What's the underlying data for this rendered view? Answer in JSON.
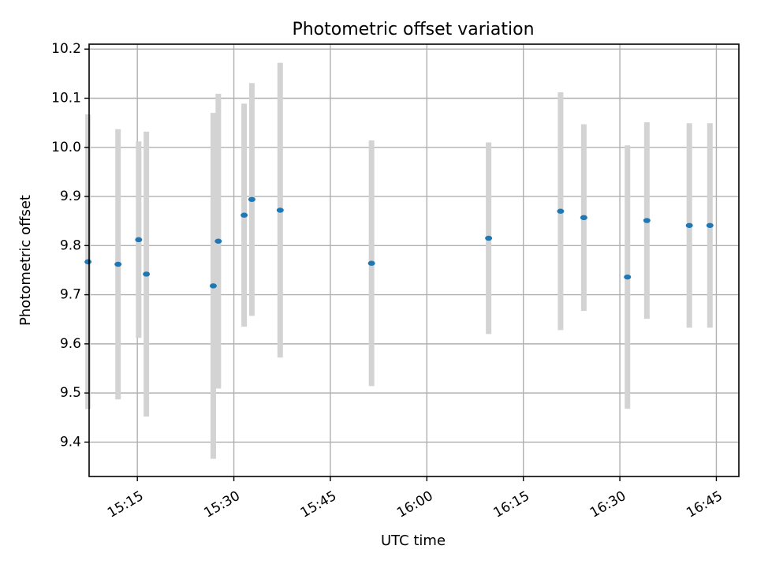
{
  "chart_data": {
    "type": "scatter",
    "title": "Photometric offset variation",
    "xlabel": "UTC time",
    "ylabel": "Photometric offset",
    "x_axis": {
      "type": "time",
      "range": [
        "15:07:30",
        "16:48:30"
      ],
      "ticks": [
        "15:15",
        "15:30",
        "15:45",
        "16:00",
        "16:15",
        "16:30",
        "16:45"
      ]
    },
    "y_axis": {
      "range": [
        9.33,
        10.21
      ],
      "ticks": [
        "9.4",
        "9.5",
        "9.6",
        "9.7",
        "9.8",
        "9.9",
        "10.0",
        "10.1",
        "10.2"
      ]
    },
    "grid": true,
    "colors": {
      "point": "#1f77b4",
      "errorbar": "#d3d3d3"
    },
    "points": [
      {
        "x": "15:07:20",
        "y": 9.767,
        "yerr": 0.3
      },
      {
        "x": "15:12:00",
        "y": 9.762,
        "yerr": 0.275
      },
      {
        "x": "15:15:12",
        "y": 9.812,
        "yerr": 0.2
      },
      {
        "x": "15:16:24",
        "y": 9.742,
        "yerr": 0.29
      },
      {
        "x": "15:26:48",
        "y": 9.718,
        "yerr": 0.352
      },
      {
        "x": "15:27:35",
        "y": 9.809,
        "yerr": 0.3
      },
      {
        "x": "15:31:36",
        "y": 9.862,
        "yerr": 0.227
      },
      {
        "x": "15:32:48",
        "y": 9.894,
        "yerr": 0.237
      },
      {
        "x": "15:37:12",
        "y": 9.872,
        "yerr": 0.3
      },
      {
        "x": "15:51:24",
        "y": 9.764,
        "yerr": 0.25
      },
      {
        "x": "16:09:36",
        "y": 9.815,
        "yerr": 0.195
      },
      {
        "x": "16:20:47",
        "y": 9.87,
        "yerr": 0.242
      },
      {
        "x": "16:24:24",
        "y": 9.857,
        "yerr": 0.19
      },
      {
        "x": "16:31:11",
        "y": 9.736,
        "yerr": 0.268
      },
      {
        "x": "16:34:12",
        "y": 9.851,
        "yerr": 0.2
      },
      {
        "x": "16:40:48",
        "y": 9.841,
        "yerr": 0.208
      },
      {
        "x": "16:44:00",
        "y": 9.841,
        "yerr": 0.208
      }
    ]
  }
}
